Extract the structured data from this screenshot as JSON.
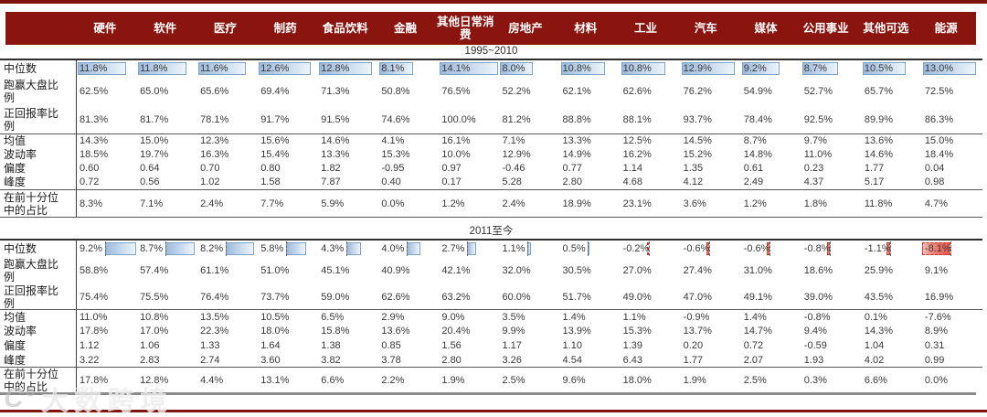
{
  "chart_data": {
    "type": "table",
    "columns": [
      "硬件",
      "软件",
      "医疗",
      "制药",
      "食品饮料",
      "金融",
      "其他日常消费",
      "房地产",
      "材料",
      "工业",
      "汽车",
      "媒体",
      "公用事业",
      "其他可选",
      "能源"
    ],
    "row_labels": [
      "中位数",
      "跑赢大盘比例",
      "正回报率比例",
      "均值",
      "波动率",
      "偏度",
      "峰度",
      "在前十分位中的占比"
    ],
    "sections": [
      {
        "title": "1995~2010",
        "databar": {
          "row": 0,
          "min": 0,
          "max": 14.1
        },
        "rows": [
          {
            "label": "中位数",
            "values": [
              "11.8%",
              "11.8%",
              "11.6%",
              "12.6%",
              "12.8%",
              "8.1%",
              "14.1%",
              "8.0%",
              "10.8%",
              "10.8%",
              "12.9%",
              "9.2%",
              "8.7%",
              "10.5%",
              "13.0%"
            ]
          },
          {
            "label": "跑赢大盘比例",
            "values": [
              "62.5%",
              "65.0%",
              "65.6%",
              "69.4%",
              "71.3%",
              "50.8%",
              "76.5%",
              "52.2%",
              "62.1%",
              "62.6%",
              "76.2%",
              "54.9%",
              "52.7%",
              "65.7%",
              "72.5%"
            ]
          },
          {
            "label": "正回报率比例",
            "values": [
              "81.3%",
              "81.7%",
              "78.1%",
              "91.7%",
              "91.5%",
              "74.6%",
              "100.0%",
              "81.2%",
              "88.8%",
              "88.1%",
              "93.7%",
              "78.4%",
              "92.5%",
              "89.9%",
              "86.3%"
            ]
          },
          {
            "label": "均值",
            "values": [
              "14.3%",
              "15.0%",
              "12.3%",
              "15.6%",
              "14.6%",
              "4.1%",
              "16.1%",
              "7.1%",
              "13.3%",
              "12.5%",
              "14.5%",
              "8.7%",
              "9.7%",
              "13.6%",
              "15.0%"
            ]
          },
          {
            "label": "波动率",
            "values": [
              "18.5%",
              "19.7%",
              "16.3%",
              "15.4%",
              "13.3%",
              "15.3%",
              "10.0%",
              "12.9%",
              "14.9%",
              "16.2%",
              "15.2%",
              "14.8%",
              "11.0%",
              "14.6%",
              "18.4%"
            ]
          },
          {
            "label": "偏度",
            "values": [
              "0.60",
              "0.64",
              "0.70",
              "0.80",
              "1.82",
              "-0.95",
              "0.97",
              "-0.46",
              "0.77",
              "1.14",
              "1.35",
              "0.61",
              "0.23",
              "1.77",
              "0.04"
            ]
          },
          {
            "label": "峰度",
            "values": [
              "0.72",
              "0.56",
              "1.02",
              "1.58",
              "7.87",
              "0.40",
              "0.17",
              "5.28",
              "2.80",
              "4.68",
              "4.12",
              "2.49",
              "4.37",
              "5.17",
              "0.98"
            ]
          },
          {
            "label": "在前十分位中的占比",
            "values": [
              "8.3%",
              "7.1%",
              "2.4%",
              "7.7%",
              "5.9%",
              "0.0%",
              "1.2%",
              "2.4%",
              "18.9%",
              "23.1%",
              "3.6%",
              "1.2%",
              "1.8%",
              "11.8%",
              "4.7%"
            ]
          }
        ]
      },
      {
        "title": "2011至今",
        "databar": {
          "row": 0,
          "min": -8.1,
          "max": 9.2
        },
        "rows": [
          {
            "label": "中位数",
            "values": [
              "9.2%",
              "8.7%",
              "8.2%",
              "5.8%",
              "4.3%",
              "4.0%",
              "2.7%",
              "1.1%",
              "0.5%",
              "-0.2%",
              "-0.6%",
              "-0.6%",
              "-0.8%",
              "-1.1%",
              "-8.1%"
            ]
          },
          {
            "label": "跑赢大盘比例",
            "values": [
              "58.8%",
              "57.4%",
              "61.1%",
              "51.0%",
              "45.1%",
              "40.9%",
              "42.1%",
              "32.0%",
              "30.5%",
              "27.0%",
              "27.4%",
              "31.0%",
              "18.6%",
              "25.9%",
              "9.1%"
            ]
          },
          {
            "label": "正回报率比例",
            "values": [
              "75.4%",
              "75.5%",
              "76.4%",
              "73.7%",
              "59.0%",
              "62.6%",
              "63.2%",
              "60.0%",
              "51.7%",
              "49.0%",
              "47.0%",
              "49.1%",
              "39.0%",
              "43.5%",
              "16.9%"
            ]
          },
          {
            "label": "均值",
            "values": [
              "11.0%",
              "10.8%",
              "13.5%",
              "10.5%",
              "6.5%",
              "2.9%",
              "9.0%",
              "3.5%",
              "1.4%",
              "1.1%",
              "-0.9%",
              "1.4%",
              "-0.8%",
              "0.1%",
              "-7.6%"
            ]
          },
          {
            "label": "波动率",
            "values": [
              "17.8%",
              "17.0%",
              "22.3%",
              "18.0%",
              "15.8%",
              "13.6%",
              "20.4%",
              "9.9%",
              "13.9%",
              "15.3%",
              "13.7%",
              "14.7%",
              "9.4%",
              "14.3%",
              "8.9%"
            ]
          },
          {
            "label": "偏度",
            "values": [
              "1.12",
              "1.06",
              "1.33",
              "1.64",
              "1.38",
              "0.85",
              "1.56",
              "1.17",
              "1.10",
              "1.39",
              "0.20",
              "0.72",
              "-0.59",
              "1.04",
              "0.31"
            ]
          },
          {
            "label": "峰度",
            "values": [
              "3.22",
              "2.83",
              "2.74",
              "3.60",
              "3.82",
              "3.78",
              "2.80",
              "3.26",
              "4.54",
              "6.43",
              "1.77",
              "2.07",
              "1.93",
              "4.02",
              "0.99"
            ]
          },
          {
            "label": "在前十分位中的占比",
            "values": [
              "17.8%",
              "12.8%",
              "4.4%",
              "13.1%",
              "6.6%",
              "2.2%",
              "1.9%",
              "2.5%",
              "9.6%",
              "18.0%",
              "1.9%",
              "2.5%",
              "0.3%",
              "6.6%",
              "0.0%"
            ]
          }
        ]
      }
    ],
    "layout_hints": {
      "databar_positive_fill": "#9db9db",
      "databar_negative_fill": "#e8574b",
      "databar_axis": "dashed"
    }
  },
  "watermark": {
    "logo": "C°",
    "text": "大数跨境"
  },
  "colors": {
    "header_bg": "#8a140e",
    "rule_red": "#7e1610",
    "rule_gray": "#8a8a8a",
    "bar_blue_border": "#7fa3c9",
    "bar_red_border": "#c0392b",
    "text": "#3a3a3a"
  }
}
